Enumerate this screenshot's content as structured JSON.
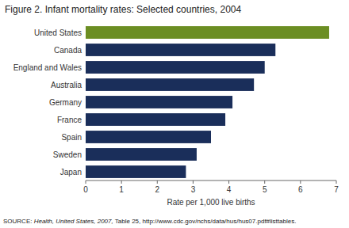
{
  "chart_data": {
    "type": "bar",
    "orientation": "horizontal",
    "title": "Figure 2.  Infant mortality rates:  Selected countries, 2004",
    "categories": [
      "United States",
      "Canada",
      "England and Wales",
      "Australia",
      "Germany",
      "France",
      "Spain",
      "Sweden",
      "Japan"
    ],
    "values": [
      6.8,
      5.3,
      5.0,
      4.7,
      4.1,
      3.9,
      3.5,
      3.1,
      2.8
    ],
    "colors": [
      "#6b8e23",
      "#1a2e5a",
      "#1a2e5a",
      "#1a2e5a",
      "#1a2e5a",
      "#1a2e5a",
      "#1a2e5a",
      "#1a2e5a",
      "#1a2e5a"
    ],
    "xlim": [
      0,
      7
    ],
    "xticks": [
      0,
      1,
      2,
      3,
      4,
      5,
      6,
      7
    ],
    "xlabel": "Rate per 1,000 live births",
    "source": [
      "SOURCE: ",
      "Health, United States, 2007,",
      " Table 25, http://www.cdc.gov/nchs/data/hus/hus07.pdf#listtables."
    ],
    "grid": false
  }
}
